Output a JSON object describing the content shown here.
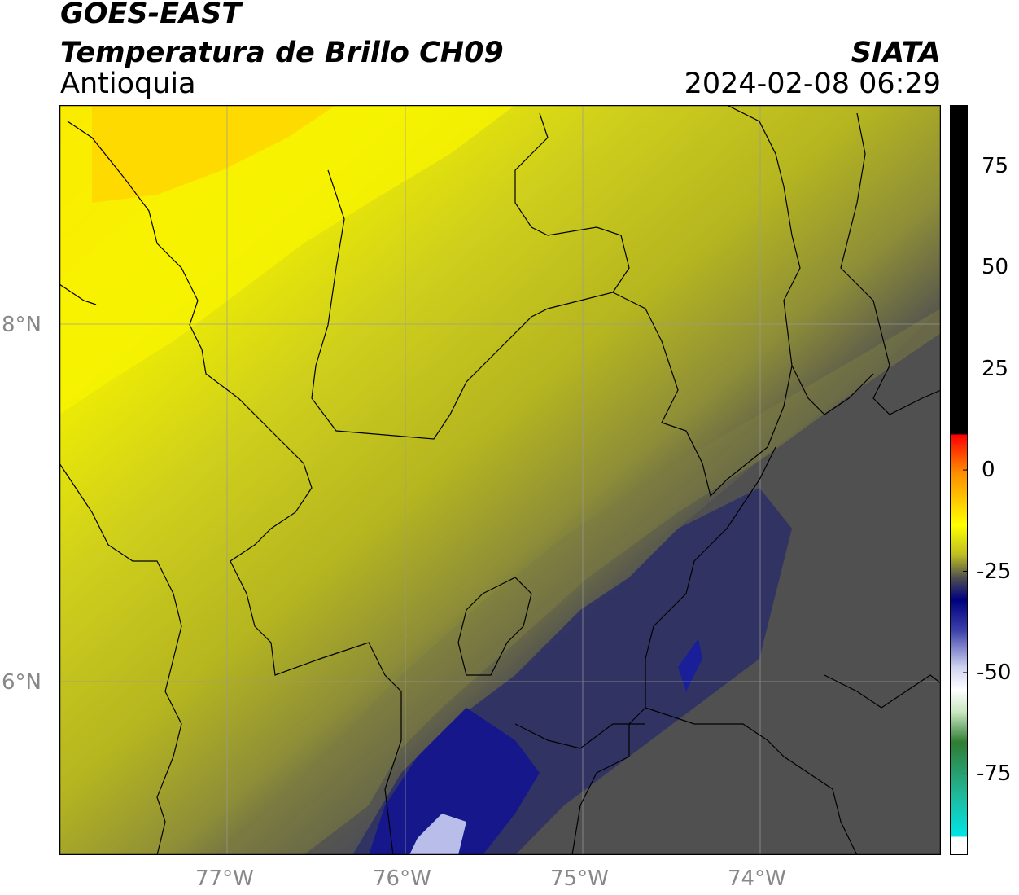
{
  "header": {
    "satellite": "GOES-EAST",
    "product": "Temperatura de Brillo CH09",
    "region": "Antioquia",
    "organization": "SIATA",
    "datetime": "2024-02-08 06:29"
  },
  "map": {
    "lon_labels": [
      "77°W",
      "76°W",
      "75°W",
      "74°W"
    ],
    "lat_labels": [
      "8°N",
      "6°N"
    ],
    "lon_range": [
      -77.93,
      -73.0
    ],
    "lat_range": [
      4.95,
      9.15
    ]
  },
  "colorbar": {
    "tick_labels": [
      "75",
      "50",
      "25",
      "0",
      "-25",
      "-50",
      "-75"
    ],
    "ticks": [
      75,
      50,
      25,
      0,
      -25,
      -50,
      -75
    ],
    "range": [
      -95,
      90
    ],
    "colors": {
      "black": "#000000",
      "red": "#ff0000",
      "orange": "#ff8c00",
      "yellow": "#ffff00",
      "olive": "#bdbd22",
      "gray": "#4f4f4f",
      "navy": "#000080",
      "white": "#ffffff",
      "green": "#2e7d32",
      "cyan": "#00e5e5"
    }
  }
}
